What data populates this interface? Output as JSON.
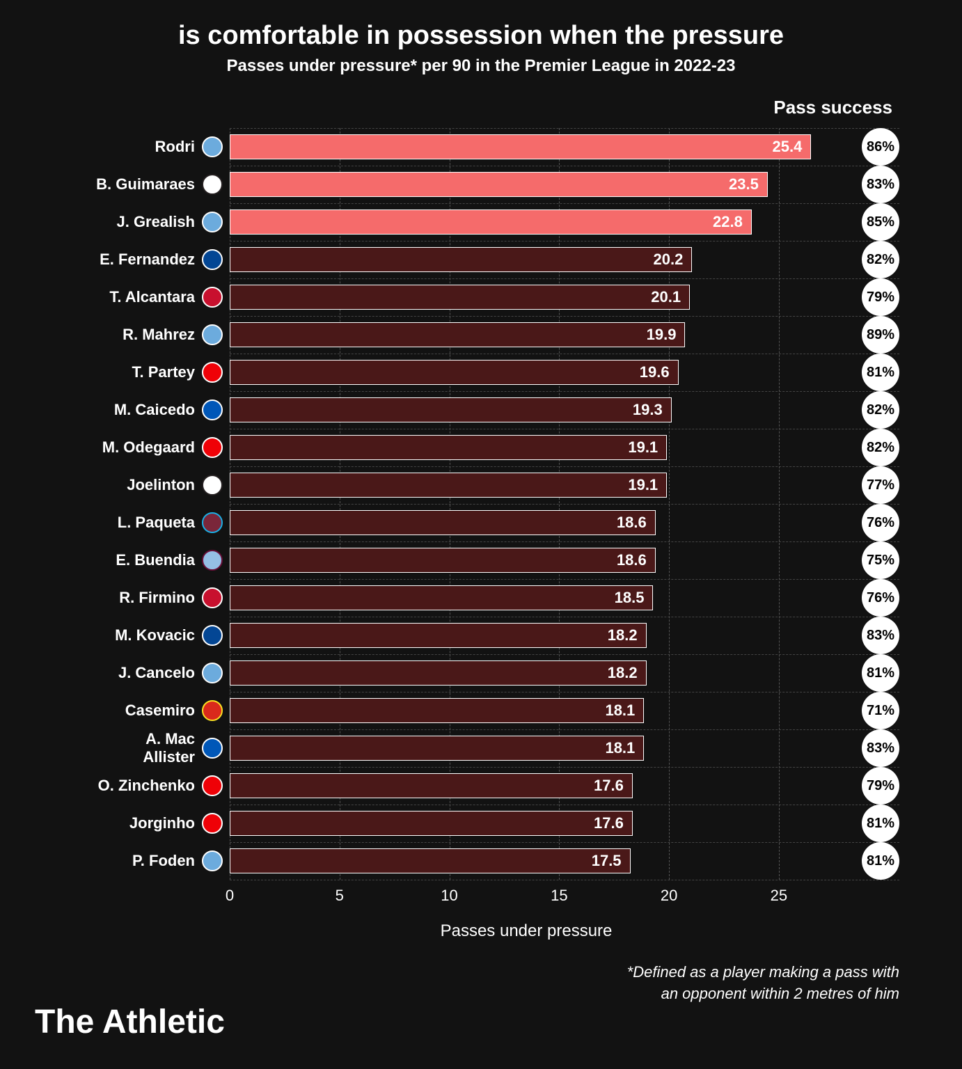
{
  "title": "is comfortable in possession when the pressure",
  "subtitle": "Passes under pressure* per 90 in the Premier League in 2022-23",
  "pass_success_header": "Pass success",
  "x_axis_label": "Passes under pressure",
  "footnote_line1": "*Defined as a player making a pass with",
  "footnote_line2": "an opponent within 2 metres of him",
  "brand": "The Athletic",
  "chart": {
    "type": "bar",
    "xlim": [
      0,
      27
    ],
    "xticks": [
      0,
      5,
      10,
      15,
      20,
      25
    ],
    "bar_border": "#ffffff",
    "highlight_color": "#f56b6b",
    "default_color": "#4a1818",
    "background": "#121212",
    "grid_color": "#555555"
  },
  "clubs": {
    "mancity": {
      "bg": "#6CABDD",
      "ring": "#ffffff"
    },
    "newcastle": {
      "bg": "#ffffff",
      "ring": "#241F20"
    },
    "chelsea": {
      "bg": "#034694",
      "ring": "#ffffff"
    },
    "liverpool": {
      "bg": "#C8102E",
      "ring": "#ffffff"
    },
    "arsenal": {
      "bg": "#EF0107",
      "ring": "#ffffff"
    },
    "brighton": {
      "bg": "#0057B8",
      "ring": "#ffffff"
    },
    "westham": {
      "bg": "#7A263A",
      "ring": "#1BB1E7"
    },
    "astonvilla": {
      "bg": "#95BFE5",
      "ring": "#670E36"
    },
    "manutd": {
      "bg": "#DA291C",
      "ring": "#FBE122"
    }
  },
  "players": [
    {
      "name": "Rodri",
      "club": "mancity",
      "value": 25.4,
      "success": "86%",
      "highlight": true
    },
    {
      "name": "B. Guimaraes",
      "club": "newcastle",
      "value": 23.5,
      "success": "83%",
      "highlight": true
    },
    {
      "name": "J. Grealish",
      "club": "mancity",
      "value": 22.8,
      "success": "85%",
      "highlight": true
    },
    {
      "name": "E. Fernandez",
      "club": "chelsea",
      "value": 20.2,
      "success": "82%",
      "highlight": false
    },
    {
      "name": "T. Alcantara",
      "club": "liverpool",
      "value": 20.1,
      "success": "79%",
      "highlight": false
    },
    {
      "name": "R. Mahrez",
      "club": "mancity",
      "value": 19.9,
      "success": "89%",
      "highlight": false
    },
    {
      "name": "T. Partey",
      "club": "arsenal",
      "value": 19.6,
      "success": "81%",
      "highlight": false
    },
    {
      "name": "M. Caicedo",
      "club": "brighton",
      "value": 19.3,
      "success": "82%",
      "highlight": false
    },
    {
      "name": "M. Odegaard",
      "club": "arsenal",
      "value": 19.1,
      "success": "82%",
      "highlight": false
    },
    {
      "name": "Joelinton",
      "club": "newcastle",
      "value": 19.1,
      "success": "77%",
      "highlight": false
    },
    {
      "name": "L. Paqueta",
      "club": "westham",
      "value": 18.6,
      "success": "76%",
      "highlight": false
    },
    {
      "name": "E. Buendia",
      "club": "astonvilla",
      "value": 18.6,
      "success": "75%",
      "highlight": false
    },
    {
      "name": "R. Firmino",
      "club": "liverpool",
      "value": 18.5,
      "success": "76%",
      "highlight": false
    },
    {
      "name": "M. Kovacic",
      "club": "chelsea",
      "value": 18.2,
      "success": "83%",
      "highlight": false
    },
    {
      "name": "J. Cancelo",
      "club": "mancity",
      "value": 18.2,
      "success": "81%",
      "highlight": false
    },
    {
      "name": "Casemiro",
      "club": "manutd",
      "value": 18.1,
      "success": "71%",
      "highlight": false
    },
    {
      "name": "A. Mac Allister",
      "club": "brighton",
      "value": 18.1,
      "success": "83%",
      "highlight": false
    },
    {
      "name": "O. Zinchenko",
      "club": "arsenal",
      "value": 17.6,
      "success": "79%",
      "highlight": false
    },
    {
      "name": "Jorginho",
      "club": "arsenal",
      "value": 17.6,
      "success": "81%",
      "highlight": false
    },
    {
      "name": "P. Foden",
      "club": "mancity",
      "value": 17.5,
      "success": "81%",
      "highlight": false
    }
  ]
}
